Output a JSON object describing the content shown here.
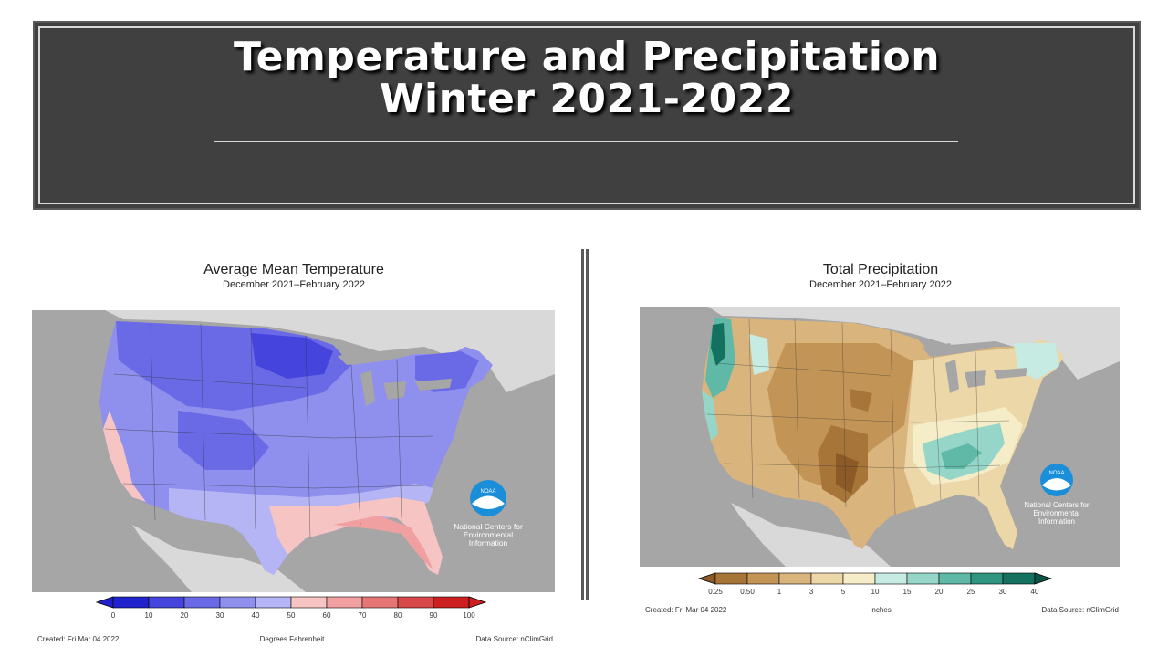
{
  "banner": {
    "title_line1": "Temperature and Precipitation",
    "title_line2": "Winter 2021-2022"
  },
  "temperature_map": {
    "title": "Average Mean Temperature",
    "subtitle": "December 2021–February 2022",
    "legend_ticks": [
      "0",
      "10",
      "20",
      "30",
      "40",
      "50",
      "60",
      "70",
      "80",
      "90",
      "100"
    ],
    "legend_colors": [
      "#2222cc",
      "#4545dd",
      "#6a6ae6",
      "#8f8fee",
      "#b5b5f5",
      "#f7c4c4",
      "#f0a0a0",
      "#e67575",
      "#d94848",
      "#cc1f1f"
    ],
    "unit_label": "Degrees Fahrenheit",
    "created": "Created: Fri Mar 04 2022",
    "data_source": "Data Source: nClimGrid",
    "logo_text": "NOAA",
    "org_line1": "National Centers for",
    "org_line2": "Environmental",
    "org_line3": "Information"
  },
  "precipitation_map": {
    "title": "Total Precipitation",
    "subtitle": "December 2021–February 2022",
    "legend_ticks": [
      "0.25",
      "0.50",
      "1",
      "3",
      "5",
      "10",
      "15",
      "20",
      "25",
      "30",
      "40"
    ],
    "legend_colors": [
      "#8c5a26",
      "#a87539",
      "#c29556",
      "#d9b47d",
      "#ecd7a8",
      "#f5ecc8",
      "#c6ebe2",
      "#96d6c8",
      "#5fb9a6",
      "#2f9480",
      "#14705f",
      "#0b5446"
    ],
    "unit_label": "Inches",
    "created": "Created: Fri Mar 04 2022",
    "data_source": "Data Source: nClimGrid",
    "logo_text": "NOAA",
    "org_line1": "National Centers for",
    "org_line2": "Environmental",
    "org_line3": "Information"
  },
  "colors": {
    "banner_bg": "#404040",
    "map_bg": "#a6a6a6",
    "ocean_gray": "#a6a6a6",
    "land_outside": "#d9d9d9",
    "noaa_blue": "#1a8ed8"
  }
}
